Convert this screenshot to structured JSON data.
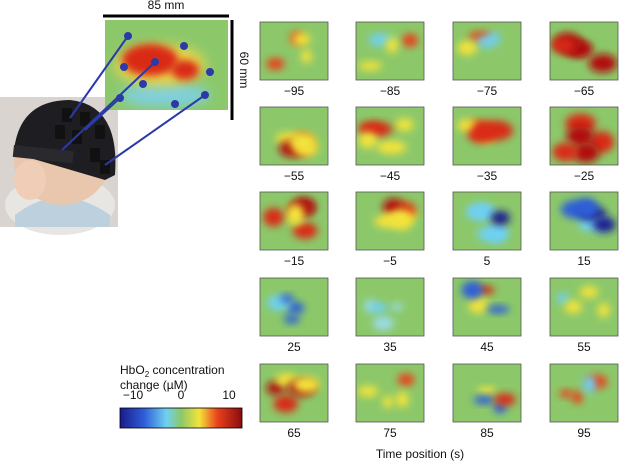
{
  "scale": {
    "width_label": "85 mm",
    "height_label": "60 mm"
  },
  "panels": [
    "−95",
    "−85",
    "−75",
    "−65",
    "−55",
    "−45",
    "−35",
    "−25",
    "−15",
    "−5",
    "5",
    "15",
    "25",
    "35",
    "45",
    "55",
    "65",
    "75",
    "85",
    "95"
  ],
  "legend": {
    "title_main": "HbO",
    "title_sub": "2",
    "title_rest": " concentration",
    "title_line2": "change (µM)",
    "ticks": [
      "−10",
      "0",
      "10"
    ]
  },
  "x_axis_label": "Time position (s)"
}
